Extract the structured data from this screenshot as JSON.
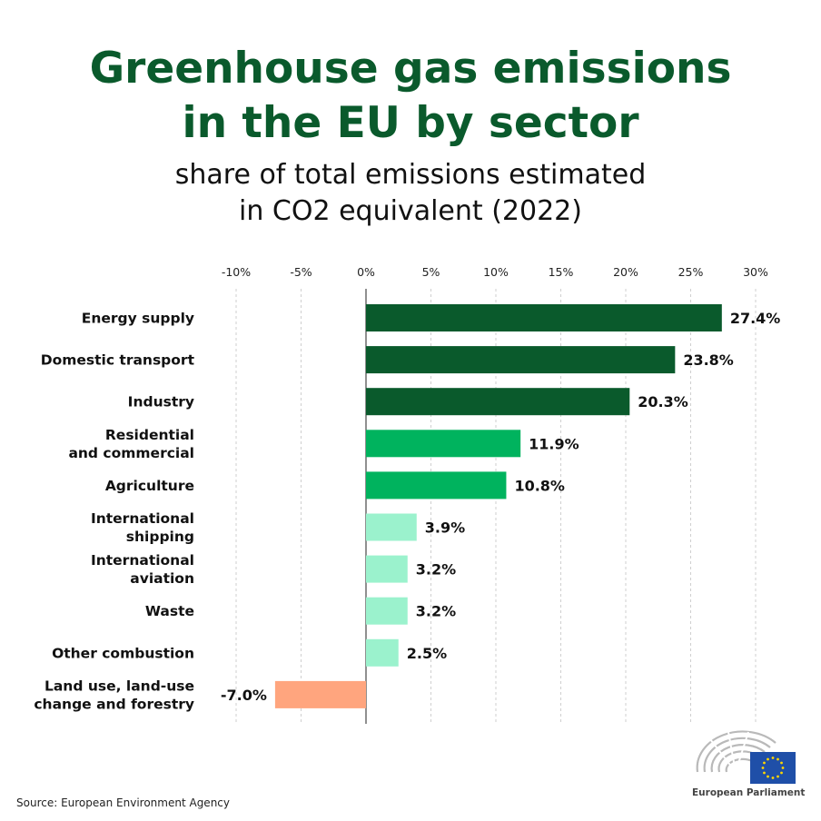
{
  "title_lines": [
    "Greenhouse gas emissions",
    "in the EU by sector"
  ],
  "subtitle_lines": [
    "share of total emissions estimated",
    "in CO2 equivalent (2022)"
  ],
  "source": "Source: European Environment Agency",
  "logo": {
    "text": "European Parliament",
    "icon": "european-parliament-logo",
    "flag_color": "#1f4fa8",
    "star_color": "#ffd600"
  },
  "colors": {
    "title": "#0a5a2c",
    "dark_green": "#0a5a2c",
    "green": "#00b35e",
    "light_green": "#9bf2cd",
    "orange": "#ffa57e"
  },
  "chart_data": {
    "type": "bar",
    "orientation": "horizontal",
    "categories": [
      [
        "Energy supply"
      ],
      [
        "Domestic transport"
      ],
      [
        "Industry"
      ],
      [
        "Residential",
        "and commercial"
      ],
      [
        "Agriculture"
      ],
      [
        "International",
        "shipping"
      ],
      [
        "International",
        "aviation"
      ],
      [
        "Waste"
      ],
      [
        "Other combustion"
      ],
      [
        "Land use, land-use",
        "change and forestry"
      ]
    ],
    "values": [
      27.4,
      23.8,
      20.3,
      11.9,
      10.8,
      3.9,
      3.2,
      3.2,
      2.5,
      -7.0
    ],
    "value_labels": [
      "27.4%",
      "23.8%",
      "20.3%",
      "11.9%",
      "10.8%",
      "3.9%",
      "3.2%",
      "3.2%",
      "2.5%",
      "-7.0%"
    ],
    "bar_colors": [
      "#0a5a2c",
      "#0a5a2c",
      "#0a5a2c",
      "#00b35e",
      "#00b35e",
      "#9bf2cd",
      "#9bf2cd",
      "#9bf2cd",
      "#9bf2cd",
      "#ffa57e"
    ],
    "xlim": [
      -10,
      30
    ],
    "xticks": [
      -10,
      -5,
      0,
      5,
      10,
      15,
      20,
      25,
      30
    ],
    "xtick_labels": [
      "-10%",
      "-5%",
      "0%",
      "5%",
      "10%",
      "15%",
      "20%",
      "25%",
      "30%"
    ],
    "x_axis_position": "top",
    "grid": "vertical dashed"
  }
}
